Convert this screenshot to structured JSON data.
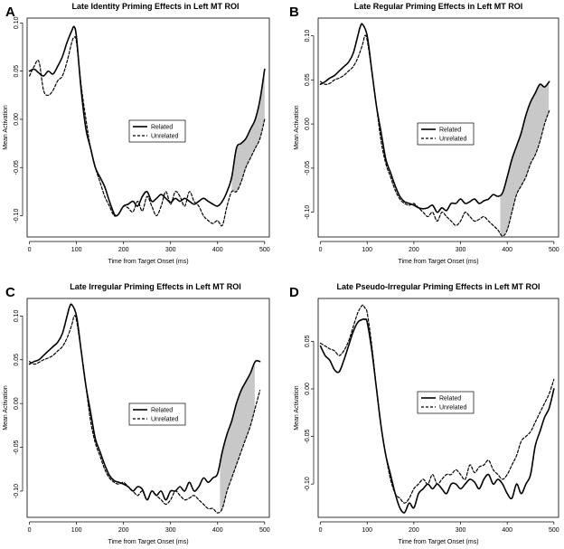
{
  "chart_data": [
    {
      "panel": "A",
      "type": "line",
      "title": "Late Identity Priming Effects in Left MT ROI",
      "xlabel": "Time from Target Onset (ms)",
      "ylabel": "Mean Activation",
      "xlim": [
        -5,
        510
      ],
      "ylim": [
        -0.122,
        0.105
      ],
      "xticks": [
        0,
        100,
        200,
        300,
        400,
        500
      ],
      "xtick_labels": [
        "0",
        "100",
        "200",
        "300",
        "400",
        "500"
      ],
      "yticks": [
        -0.1,
        -0.05,
        0.0,
        0.05,
        0.1
      ],
      "ytick_labels": [
        "-0.10",
        "-0.05",
        "0.00",
        "0.05",
        "0.10"
      ],
      "legend": [
        "Related",
        "Unrelated"
      ],
      "shade_range": [
        430,
        500
      ],
      "series": [
        {
          "name": "Related",
          "style": "solid",
          "x": [
            0,
            10,
            20,
            30,
            40,
            50,
            60,
            70,
            80,
            90,
            95,
            100,
            110,
            120,
            130,
            140,
            150,
            160,
            170,
            180,
            185,
            190,
            200,
            210,
            220,
            230,
            240,
            250,
            260,
            270,
            280,
            290,
            300,
            310,
            320,
            330,
            340,
            350,
            360,
            370,
            380,
            390,
            400,
            410,
            420,
            430,
            440,
            450,
            460,
            470,
            480,
            490,
            500
          ],
          "y": [
            0.05,
            0.052,
            0.048,
            0.045,
            0.05,
            0.047,
            0.055,
            0.065,
            0.08,
            0.092,
            0.096,
            0.085,
            0.03,
            -0.01,
            -0.03,
            -0.05,
            -0.06,
            -0.07,
            -0.085,
            -0.098,
            -0.1,
            -0.098,
            -0.09,
            -0.088,
            -0.085,
            -0.09,
            -0.08,
            -0.075,
            -0.085,
            -0.082,
            -0.078,
            -0.082,
            -0.086,
            -0.082,
            -0.085,
            -0.082,
            -0.085,
            -0.088,
            -0.085,
            -0.082,
            -0.085,
            -0.088,
            -0.09,
            -0.085,
            -0.075,
            -0.06,
            -0.03,
            -0.025,
            -0.02,
            -0.01,
            0.0,
            0.02,
            0.052
          ]
        },
        {
          "name": "Unrelated",
          "style": "dashed",
          "x": [
            0,
            10,
            20,
            30,
            40,
            50,
            60,
            70,
            80,
            90,
            95,
            100,
            110,
            120,
            130,
            140,
            150,
            160,
            170,
            180,
            190,
            200,
            210,
            220,
            230,
            240,
            250,
            260,
            270,
            280,
            290,
            300,
            310,
            320,
            330,
            340,
            350,
            360,
            370,
            380,
            390,
            400,
            410,
            420,
            430,
            440,
            450,
            460,
            470,
            480,
            490,
            500
          ],
          "y": [
            0.045,
            0.055,
            0.06,
            0.03,
            0.025,
            0.03,
            0.04,
            0.045,
            0.06,
            0.08,
            0.085,
            0.08,
            0.035,
            0.0,
            -0.03,
            -0.05,
            -0.065,
            -0.08,
            -0.09,
            -0.1,
            -0.098,
            -0.09,
            -0.092,
            -0.096,
            -0.085,
            -0.095,
            -0.08,
            -0.09,
            -0.1,
            -0.09,
            -0.075,
            -0.088,
            -0.075,
            -0.08,
            -0.09,
            -0.075,
            -0.085,
            -0.09,
            -0.1,
            -0.105,
            -0.108,
            -0.105,
            -0.11,
            -0.09,
            -0.075,
            -0.075,
            -0.065,
            -0.05,
            -0.04,
            -0.03,
            -0.02,
            0.0
          ]
        }
      ]
    },
    {
      "panel": "B",
      "type": "line",
      "title": "Late Regular Priming Effects in Left MT ROI",
      "xlabel": "Time from Target Onset (ms)",
      "ylabel": "Mean Activation",
      "xlim": [
        -5,
        510
      ],
      "ylim": [
        -0.128,
        0.12
      ],
      "xticks": [
        0,
        100,
        200,
        300,
        400,
        500
      ],
      "xtick_labels": [
        "0",
        "100",
        "200",
        "300",
        "400",
        "500"
      ],
      "yticks": [
        -0.1,
        -0.05,
        0.0,
        0.05,
        0.1
      ],
      "ytick_labels": [
        "-0.10",
        "-0.05",
        "0.00",
        "0.05",
        "0.10"
      ],
      "legend": [
        "Related",
        "Unrelated"
      ],
      "shade_range": [
        385,
        490
      ],
      "series": [
        {
          "name": "Related",
          "style": "solid",
          "x": [
            0,
            10,
            20,
            30,
            40,
            50,
            60,
            70,
            80,
            85,
            90,
            100,
            110,
            120,
            130,
            140,
            150,
            160,
            170,
            180,
            190,
            200,
            210,
            220,
            230,
            240,
            250,
            260,
            270,
            280,
            290,
            300,
            310,
            320,
            330,
            340,
            350,
            360,
            370,
            380,
            390,
            400,
            410,
            420,
            430,
            440,
            450,
            460,
            470,
            480,
            490
          ],
          "y": [
            0.045,
            0.048,
            0.052,
            0.055,
            0.06,
            0.065,
            0.07,
            0.08,
            0.1,
            0.11,
            0.113,
            0.1,
            0.06,
            0.02,
            -0.01,
            -0.04,
            -0.055,
            -0.07,
            -0.082,
            -0.088,
            -0.09,
            -0.092,
            -0.095,
            -0.096,
            -0.095,
            -0.092,
            -0.1,
            -0.095,
            -0.098,
            -0.09,
            -0.09,
            -0.085,
            -0.09,
            -0.088,
            -0.085,
            -0.09,
            -0.087,
            -0.085,
            -0.08,
            -0.082,
            -0.078,
            -0.06,
            -0.04,
            -0.025,
            -0.01,
            0.01,
            0.025,
            0.035,
            0.045,
            0.042,
            0.048
          ]
        },
        {
          "name": "Unrelated",
          "style": "dashed",
          "x": [
            0,
            10,
            20,
            30,
            40,
            50,
            60,
            70,
            80,
            90,
            95,
            100,
            110,
            120,
            130,
            140,
            150,
            160,
            170,
            180,
            190,
            200,
            210,
            220,
            230,
            240,
            250,
            260,
            270,
            280,
            290,
            300,
            310,
            320,
            330,
            340,
            350,
            360,
            370,
            380,
            390,
            400,
            410,
            420,
            430,
            440,
            450,
            460,
            470,
            480,
            490
          ],
          "y": [
            0.048,
            0.045,
            0.046,
            0.05,
            0.052,
            0.055,
            0.06,
            0.065,
            0.075,
            0.09,
            0.1,
            0.095,
            0.06,
            0.02,
            -0.02,
            -0.045,
            -0.06,
            -0.075,
            -0.085,
            -0.09,
            -0.092,
            -0.09,
            -0.095,
            -0.1,
            -0.105,
            -0.1,
            -0.11,
            -0.1,
            -0.105,
            -0.11,
            -0.115,
            -0.11,
            -0.1,
            -0.105,
            -0.11,
            -0.108,
            -0.105,
            -0.11,
            -0.115,
            -0.12,
            -0.127,
            -0.12,
            -0.1,
            -0.08,
            -0.07,
            -0.06,
            -0.045,
            -0.035,
            -0.02,
            0.0,
            0.015
          ]
        }
      ]
    },
    {
      "panel": "C",
      "type": "line",
      "title": "Late Irregular Priming Effects in Left MT ROI",
      "xlabel": "Time from Target Onset (ms)",
      "ylabel": "Mean Activation",
      "xlim": [
        -5,
        510
      ],
      "ylim": [
        -0.13,
        0.12
      ],
      "xticks": [
        0,
        100,
        200,
        300,
        400,
        500
      ],
      "xtick_labels": [
        "0",
        "100",
        "200",
        "300",
        "400",
        "500"
      ],
      "yticks": [
        -0.1,
        -0.05,
        0.0,
        0.05,
        0.1
      ],
      "ytick_labels": [
        "-0.10",
        "-0.05",
        "0.00",
        "0.05",
        "0.10"
      ],
      "legend": [
        "Related",
        "Unrelated"
      ],
      "shade_range": [
        405,
        480
      ],
      "series": [
        {
          "name": "Related",
          "style": "solid",
          "x": [
            0,
            10,
            20,
            30,
            40,
            50,
            60,
            70,
            80,
            85,
            90,
            100,
            110,
            120,
            130,
            140,
            150,
            160,
            170,
            180,
            190,
            200,
            210,
            220,
            230,
            240,
            250,
            260,
            270,
            280,
            290,
            300,
            310,
            320,
            330,
            340,
            350,
            360,
            370,
            380,
            390,
            400,
            410,
            420,
            430,
            440,
            450,
            460,
            470,
            480,
            490
          ],
          "y": [
            0.045,
            0.048,
            0.05,
            0.055,
            0.06,
            0.065,
            0.07,
            0.08,
            0.1,
            0.11,
            0.113,
            0.1,
            0.06,
            0.02,
            -0.01,
            -0.04,
            -0.055,
            -0.07,
            -0.082,
            -0.088,
            -0.09,
            -0.092,
            -0.095,
            -0.1,
            -0.095,
            -0.098,
            -0.11,
            -0.1,
            -0.105,
            -0.1,
            -0.11,
            -0.1,
            -0.1,
            -0.095,
            -0.1,
            -0.09,
            -0.1,
            -0.095,
            -0.085,
            -0.09,
            -0.085,
            -0.08,
            -0.055,
            -0.035,
            -0.02,
            0.0,
            0.015,
            0.025,
            0.035,
            0.048,
            0.048
          ]
        },
        {
          "name": "Unrelated",
          "style": "dashed",
          "x": [
            0,
            10,
            20,
            30,
            40,
            50,
            60,
            70,
            80,
            90,
            95,
            100,
            110,
            120,
            130,
            140,
            150,
            160,
            170,
            180,
            190,
            200,
            210,
            220,
            230,
            240,
            250,
            260,
            270,
            280,
            290,
            300,
            310,
            320,
            330,
            340,
            350,
            360,
            370,
            380,
            390,
            400,
            410,
            420,
            430,
            440,
            450,
            460,
            470,
            480,
            490
          ],
          "y": [
            0.048,
            0.045,
            0.047,
            0.05,
            0.052,
            0.055,
            0.06,
            0.065,
            0.075,
            0.09,
            0.1,
            0.095,
            0.06,
            0.02,
            -0.02,
            -0.045,
            -0.06,
            -0.075,
            -0.085,
            -0.09,
            -0.092,
            -0.09,
            -0.095,
            -0.1,
            -0.105,
            -0.1,
            -0.11,
            -0.1,
            -0.105,
            -0.11,
            -0.115,
            -0.11,
            -0.1,
            -0.105,
            -0.11,
            -0.108,
            -0.105,
            -0.11,
            -0.115,
            -0.12,
            -0.12,
            -0.125,
            -0.12,
            -0.1,
            -0.085,
            -0.07,
            -0.055,
            -0.04,
            -0.025,
            -0.005,
            0.015
          ]
        }
      ]
    },
    {
      "panel": "D",
      "type": "line",
      "title": "Late Pseudo-Irregular Priming Effects in Left MT ROI",
      "xlabel": "Time from Target Onset (ms)",
      "ylabel": "Mean Activation",
      "xlim": [
        -5,
        510
      ],
      "ylim": [
        -0.135,
        0.095
      ],
      "xticks": [
        0,
        100,
        200,
        300,
        400,
        500
      ],
      "xtick_labels": [
        "0",
        "100",
        "200",
        "300",
        "400",
        "500"
      ],
      "yticks": [
        -0.1,
        -0.05,
        0.0,
        0.05
      ],
      "ytick_labels": [
        "-0.10",
        "-0.05",
        "0.00",
        "0.05"
      ],
      "legend": [
        "Related",
        "Unrelated"
      ],
      "shade_range": null,
      "series": [
        {
          "name": "Related",
          "style": "solid",
          "x": [
            0,
            10,
            20,
            30,
            40,
            50,
            60,
            70,
            80,
            90,
            95,
            100,
            110,
            120,
            130,
            140,
            150,
            160,
            170,
            180,
            190,
            200,
            210,
            220,
            230,
            240,
            250,
            260,
            270,
            280,
            290,
            300,
            310,
            320,
            330,
            340,
            350,
            360,
            370,
            380,
            390,
            400,
            410,
            420,
            430,
            440,
            450,
            460,
            470,
            480,
            490,
            500
          ],
          "y": [
            0.045,
            0.035,
            0.03,
            0.02,
            0.018,
            0.03,
            0.045,
            0.06,
            0.07,
            0.073,
            0.073,
            0.07,
            0.04,
            0.0,
            -0.04,
            -0.07,
            -0.09,
            -0.11,
            -0.125,
            -0.13,
            -0.12,
            -0.125,
            -0.11,
            -0.105,
            -0.1,
            -0.105,
            -0.1,
            -0.105,
            -0.11,
            -0.1,
            -0.1,
            -0.105,
            -0.1,
            -0.095,
            -0.098,
            -0.105,
            -0.095,
            -0.09,
            -0.1,
            -0.095,
            -0.1,
            -0.11,
            -0.115,
            -0.1,
            -0.11,
            -0.1,
            -0.09,
            -0.06,
            -0.045,
            -0.03,
            -0.02,
            0.0
          ]
        },
        {
          "name": "Unrelated",
          "style": "dashed",
          "x": [
            0,
            10,
            20,
            30,
            40,
            50,
            60,
            70,
            80,
            90,
            95,
            100,
            110,
            120,
            130,
            140,
            150,
            160,
            170,
            180,
            190,
            200,
            210,
            220,
            230,
            240,
            250,
            260,
            270,
            280,
            290,
            300,
            310,
            320,
            330,
            340,
            350,
            360,
            370,
            380,
            390,
            400,
            410,
            420,
            430,
            440,
            450,
            460,
            470,
            480,
            490,
            500
          ],
          "y": [
            0.048,
            0.045,
            0.042,
            0.04,
            0.035,
            0.04,
            0.05,
            0.065,
            0.08,
            0.088,
            0.085,
            0.08,
            0.045,
            0.0,
            -0.04,
            -0.07,
            -0.095,
            -0.11,
            -0.115,
            -0.12,
            -0.115,
            -0.105,
            -0.1,
            -0.095,
            -0.1,
            -0.09,
            -0.1,
            -0.095,
            -0.09,
            -0.09,
            -0.085,
            -0.09,
            -0.095,
            -0.08,
            -0.088,
            -0.082,
            -0.08,
            -0.075,
            -0.085,
            -0.09,
            -0.095,
            -0.09,
            -0.08,
            -0.07,
            -0.055,
            -0.05,
            -0.045,
            -0.035,
            -0.025,
            -0.015,
            -0.005,
            0.01
          ]
        }
      ]
    }
  ]
}
